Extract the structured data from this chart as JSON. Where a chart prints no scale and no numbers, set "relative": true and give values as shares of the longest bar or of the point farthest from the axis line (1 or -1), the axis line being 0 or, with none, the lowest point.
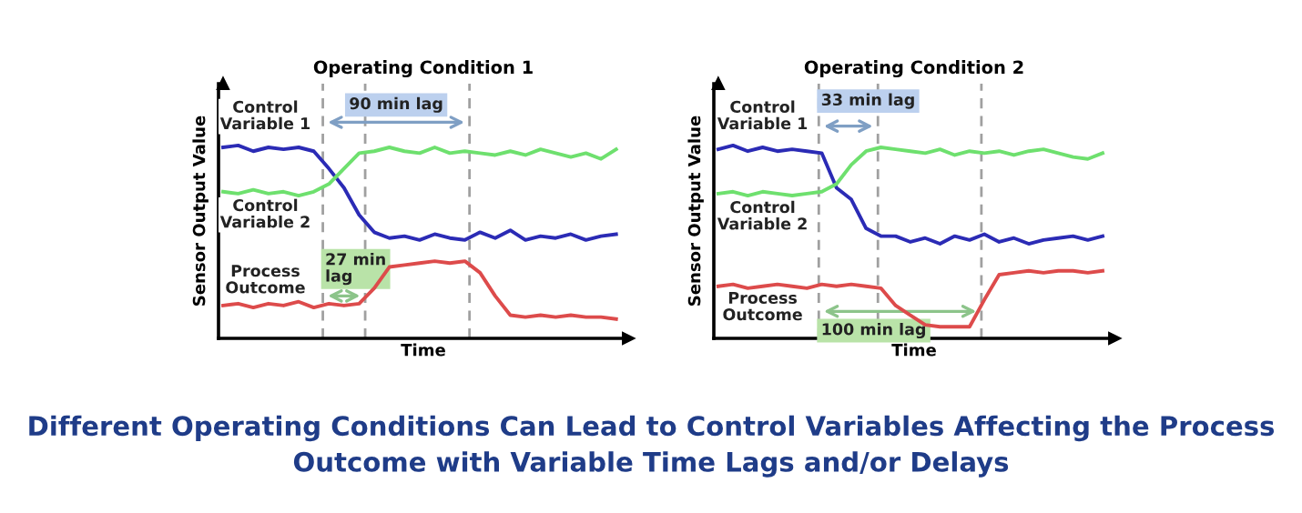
{
  "chart_data": [
    {
      "type": "line",
      "relative": true,
      "title": "Operating Condition 1",
      "xlabel": "Time",
      "ylabel": "Sensor Output Value",
      "tick_labels": false,
      "categories": [
        null,
        null,
        null,
        null,
        null,
        null,
        null,
        null,
        null,
        null,
        null,
        null,
        null,
        null,
        null,
        null,
        null,
        null,
        null,
        null,
        null,
        null,
        null,
        null,
        null,
        null,
        null
      ],
      "series": [
        {
          "name": "Control Variable 1",
          "color": "#2b2bb5",
          "values": [
            0.99,
            1.0,
            0.97,
            0.99,
            0.98,
            0.99,
            0.97,
            0.88,
            0.78,
            0.64,
            0.55,
            0.52,
            0.53,
            0.51,
            0.54,
            0.52,
            0.51,
            0.55,
            0.52,
            0.56,
            0.51,
            0.53,
            0.52,
            0.54,
            0.51,
            0.53,
            0.54
          ]
        },
        {
          "name": "Control Variable 2",
          "color": "#6ee06e",
          "values": [
            0.76,
            0.75,
            0.77,
            0.75,
            0.76,
            0.74,
            0.76,
            0.8,
            0.88,
            0.96,
            0.97,
            0.99,
            0.97,
            0.96,
            0.99,
            0.96,
            0.97,
            0.96,
            0.95,
            0.97,
            0.95,
            0.98,
            0.96,
            0.94,
            0.96,
            0.93,
            0.98
          ]
        },
        {
          "name": "Process Outcome",
          "color": "#dd4b4b",
          "values": [
            0.17,
            0.18,
            0.16,
            0.18,
            0.17,
            0.19,
            0.16,
            0.18,
            0.17,
            0.18,
            0.26,
            0.37,
            0.38,
            0.39,
            0.4,
            0.39,
            0.4,
            0.34,
            0.22,
            0.12,
            0.11,
            0.12,
            0.11,
            0.12,
            0.11,
            0.11,
            0.1
          ]
        }
      ],
      "annotations": [
        "27 min lag",
        "90 min lag"
      ]
    },
    {
      "type": "line",
      "relative": true,
      "title": "Operating Condition 2",
      "xlabel": "Time",
      "ylabel": "Sensor Output Value",
      "tick_labels": false,
      "categories": [
        null,
        null,
        null,
        null,
        null,
        null,
        null,
        null,
        null,
        null,
        null,
        null,
        null,
        null,
        null,
        null,
        null,
        null,
        null,
        null,
        null,
        null,
        null,
        null,
        null,
        null,
        null
      ],
      "series": [
        {
          "name": "Control Variable 1",
          "color": "#2b2bb5",
          "values": [
            0.98,
            1.0,
            0.97,
            0.99,
            0.97,
            0.98,
            0.97,
            0.96,
            0.78,
            0.72,
            0.57,
            0.53,
            0.53,
            0.5,
            0.52,
            0.49,
            0.53,
            0.51,
            0.54,
            0.5,
            0.52,
            0.49,
            0.51,
            0.52,
            0.53,
            0.51,
            0.53
          ]
        },
        {
          "name": "Control Variable 2",
          "color": "#6ee06e",
          "values": [
            0.75,
            0.76,
            0.74,
            0.76,
            0.75,
            0.74,
            0.75,
            0.76,
            0.8,
            0.9,
            0.97,
            0.99,
            0.98,
            0.97,
            0.96,
            0.98,
            0.95,
            0.97,
            0.96,
            0.97,
            0.95,
            0.97,
            0.98,
            0.96,
            0.94,
            0.93,
            0.96
          ]
        },
        {
          "name": "Process Outcome",
          "color": "#dd4b4b",
          "values": [
            0.27,
            0.28,
            0.26,
            0.27,
            0.28,
            0.27,
            0.26,
            0.28,
            0.27,
            0.28,
            0.27,
            0.26,
            0.17,
            0.12,
            0.07,
            0.06,
            0.06,
            0.06,
            0.2,
            0.33,
            0.34,
            0.35,
            0.34,
            0.35,
            0.35,
            0.34,
            0.35
          ]
        }
      ],
      "annotations": [
        "33 min lag",
        "100 min lag",
        "Different Operating Conditions Can Lead to Control Variables Affecting the Process Outcome with Variable Time Lags and/or Delays"
      ]
    }
  ]
}
